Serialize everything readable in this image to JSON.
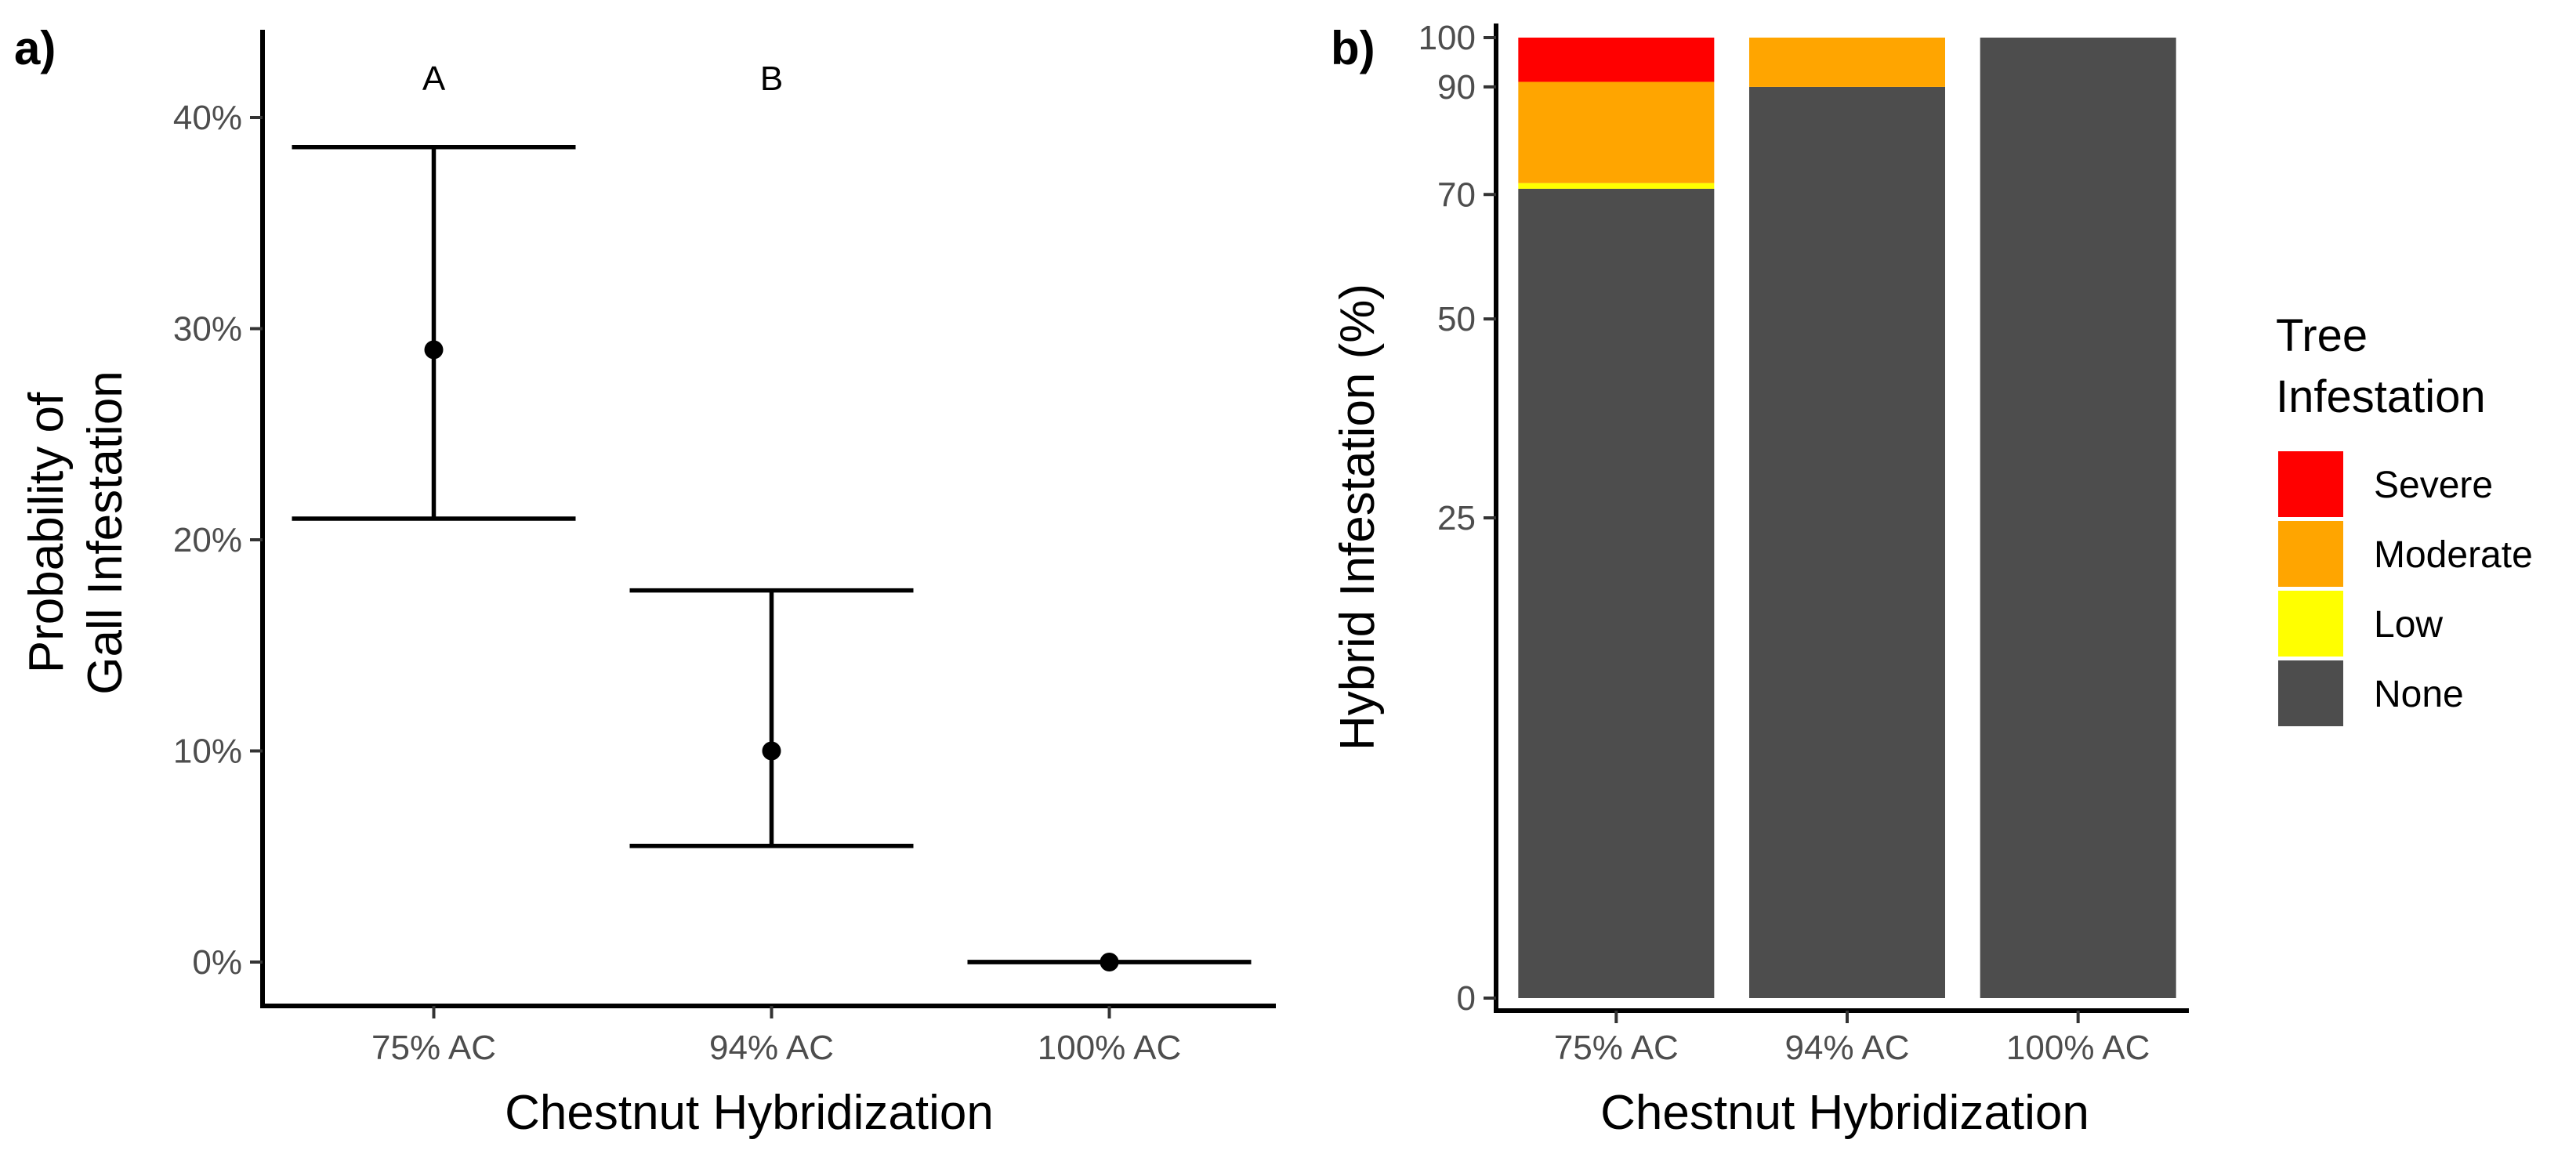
{
  "chart_data": [
    {
      "panel_label": "a)",
      "type": "errorbar",
      "xlabel": "Chestnut Hybridization",
      "ylabel_lines": [
        "Probability of",
        "Gall Infestation"
      ],
      "ylim": [
        -2,
        44
      ],
      "yticks": [
        0,
        10,
        20,
        30,
        40
      ],
      "ytick_labels": [
        "0%",
        "10%",
        "20%",
        "30%",
        "40%"
      ],
      "categories": [
        "75% AC",
        "94% AC",
        "100% AC"
      ],
      "points": [
        {
          "category": "75% AC",
          "estimate": 29,
          "lower": 21,
          "upper": 38.6,
          "letter": "A"
        },
        {
          "category": "94% AC",
          "estimate": 10,
          "lower": 5.5,
          "upper": 17.6,
          "letter": "B"
        },
        {
          "category": "100% AC",
          "estimate": 0,
          "lower": 0,
          "upper": 0,
          "letter": ""
        }
      ]
    },
    {
      "panel_label": "b)",
      "type": "stacked-bar",
      "xlabel": "Chestnut Hybridization",
      "ylabel": "Hybrid Infestation (%)",
      "ylim": [
        0,
        100
      ],
      "scale": "sqrt",
      "yticks": [
        0,
        25,
        50,
        70,
        90,
        100
      ],
      "ytick_labels": [
        "0",
        "25",
        "50",
        "70",
        "90",
        "100"
      ],
      "categories": [
        "75% AC",
        "94% AC",
        "100% AC"
      ],
      "series": [
        {
          "name": "None",
          "color": "#4d4d4d",
          "values": [
            71,
            90,
            100
          ]
        },
        {
          "name": "Low",
          "color": "#ffff00",
          "values": [
            1,
            0,
            0
          ]
        },
        {
          "name": "Moderate",
          "color": "#ffa500",
          "values": [
            19,
            10,
            0
          ]
        },
        {
          "name": "Severe",
          "color": "#ff0000",
          "values": [
            9,
            0,
            0
          ]
        }
      ],
      "legend": {
        "title_lines": [
          "Tree",
          "Infestation"
        ],
        "position": "right",
        "items": [
          {
            "label": "Severe",
            "color": "#ff0000"
          },
          {
            "label": "Moderate",
            "color": "#ffa500"
          },
          {
            "label": "Low",
            "color": "#ffff00"
          },
          {
            "label": "None",
            "color": "#4d4d4d"
          }
        ]
      }
    }
  ]
}
